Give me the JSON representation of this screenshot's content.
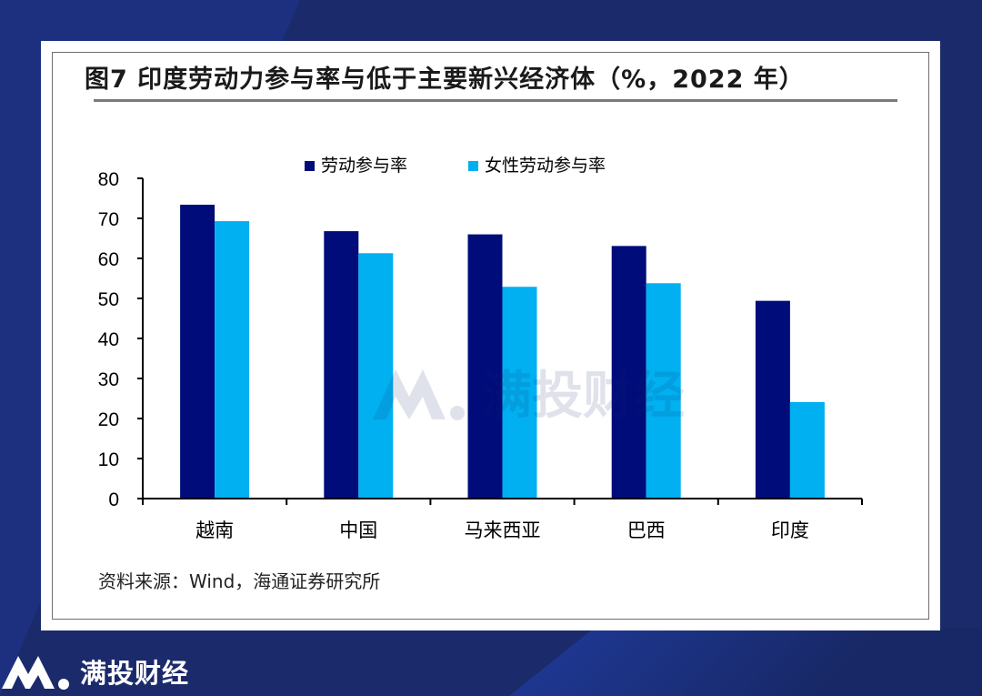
{
  "figure": {
    "title": "图7   印度劳动力参与率与低于主要新兴经济体（%，2022 年）",
    "source": "资料来源：Wind，海通证券研究所"
  },
  "branding": {
    "watermark_text": "满投财经",
    "footer_brand": "满投财经",
    "logo_icon": "mantou-logo-icon"
  },
  "colors": {
    "background": "#1b2a6b",
    "series_dark": "#000c7a",
    "series_light": "#00b0f0"
  },
  "chart_data": {
    "type": "bar",
    "title": "图7   印度劳动力参与率与低于主要新兴经济体（%，2022 年）",
    "categories": [
      "越南",
      "中国",
      "马来西亚",
      "巴西",
      "印度"
    ],
    "series": [
      {
        "name": "劳动参与率",
        "color": "#000c7a",
        "values": [
          73.4,
          66.8,
          66.0,
          63.1,
          49.4
        ]
      },
      {
        "name": "女性劳动参与率",
        "color": "#00b0f0",
        "values": [
          69.3,
          61.3,
          52.9,
          53.8,
          24.1
        ]
      }
    ],
    "ylim": [
      0,
      80
    ],
    "yticks": [
      0,
      10,
      20,
      30,
      40,
      50,
      60,
      70,
      80
    ],
    "xlabel": "",
    "ylabel": "",
    "legend": "top-center",
    "grid": false
  }
}
